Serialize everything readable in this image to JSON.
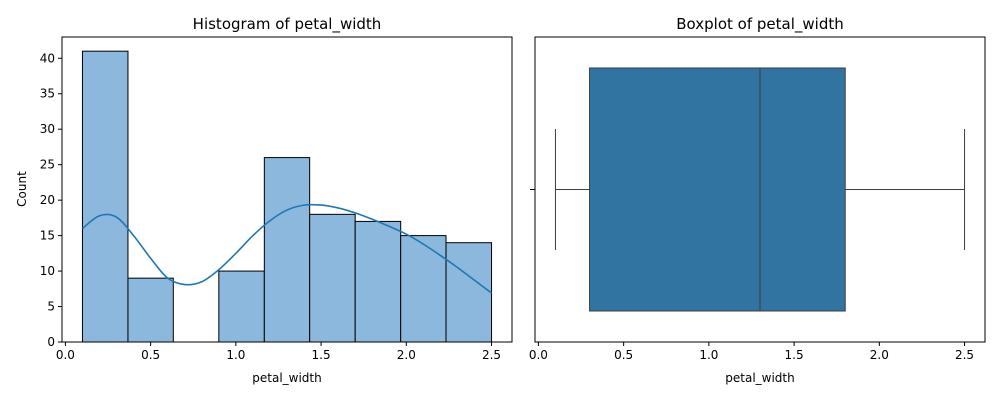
{
  "chart_data": [
    {
      "type": "bar",
      "title": "Histogram of petal_width",
      "xlabel": "petal_width",
      "ylabel": "Count",
      "xlim": [
        -0.02,
        2.62
      ],
      "ylim": [
        0,
        43
      ],
      "xticks": [
        "0.0",
        "0.5",
        "1.0",
        "1.5",
        "2.0",
        "2.5"
      ],
      "yticks": [
        "0",
        "5",
        "10",
        "15",
        "20",
        "25",
        "30",
        "35",
        "40"
      ],
      "bin_edges": [
        0.1,
        0.367,
        0.633,
        0.9,
        1.167,
        1.433,
        1.7,
        1.967,
        2.233,
        2.5
      ],
      "values": [
        41,
        9,
        0,
        10,
        26,
        18,
        17,
        15,
        14
      ],
      "kde": {
        "x": [
          0.1,
          0.2,
          0.3,
          0.4,
          0.5,
          0.6,
          0.7,
          0.8,
          0.9,
          1.0,
          1.1,
          1.2,
          1.3,
          1.4,
          1.5,
          1.6,
          1.7,
          1.8,
          1.9,
          2.0,
          2.1,
          2.2,
          2.3,
          2.4,
          2.5
        ],
        "y": [
          16.0,
          17.8,
          17.6,
          15.0,
          11.8,
          9.0,
          8.1,
          8.5,
          10.2,
          12.5,
          15.0,
          17.1,
          18.6,
          19.3,
          19.3,
          18.9,
          18.2,
          17.3,
          16.3,
          15.2,
          13.8,
          12.2,
          10.5,
          8.7,
          6.9
        ]
      },
      "colors": {
        "bar": "#8bb8dc",
        "edge": "#000000",
        "kde": "#1f77b4"
      }
    },
    {
      "type": "box",
      "title": "Boxplot of petal_width",
      "xlabel": "petal_width",
      "xlim": [
        -0.02,
        2.62
      ],
      "xticks": [
        "0.0",
        "0.5",
        "1.0",
        "1.5",
        "2.0",
        "2.5"
      ],
      "stats": {
        "min": 0.1,
        "q1": 0.3,
        "median": 1.3,
        "q3": 1.8,
        "max": 2.5
      },
      "colors": {
        "box": "#3274a1",
        "line": "#3d3d3d"
      }
    }
  ]
}
